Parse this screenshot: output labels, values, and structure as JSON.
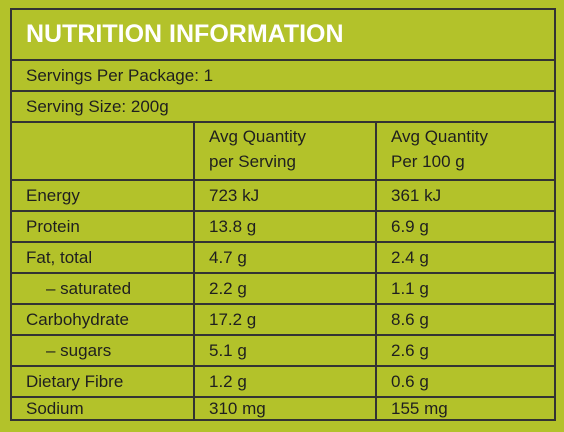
{
  "title": "NUTRITION INFORMATION",
  "servings_per_package": "Servings Per Package: 1",
  "serving_size": "Serving Size: 200g",
  "headers": {
    "col1": "",
    "col2": "Avg Quantity\nper Serving",
    "col3": "Avg Quantity\nPer 100 g"
  },
  "rows": [
    {
      "label": "Energy",
      "per_serving": "723 kJ",
      "per_100g": "361 kJ"
    },
    {
      "label": "Protein",
      "per_serving": "13.8 g",
      "per_100g": "6.9 g"
    },
    {
      "label": "Fat, total",
      "per_serving": "4.7 g",
      "per_100g": "2.4 g"
    },
    {
      "label": "– saturated",
      "per_serving": "2.2 g",
      "per_100g": "1.1 g"
    },
    {
      "label": "Carbohydrate",
      "per_serving": "17.2 g",
      "per_100g": "8.6 g"
    },
    {
      "label": "– sugars",
      "per_serving": "5.1 g",
      "per_100g": "2.6 g"
    },
    {
      "label": "Dietary Fibre",
      "per_serving": "1.2 g",
      "per_100g": "0.6 g"
    },
    {
      "label": "Sodium",
      "per_serving": "310 mg",
      "per_100g": "155 mg"
    }
  ],
  "colors": {
    "background": "#b3c22a",
    "title_text": "#ffffff",
    "body_text": "#1f1f1f",
    "rules": "#333333"
  }
}
